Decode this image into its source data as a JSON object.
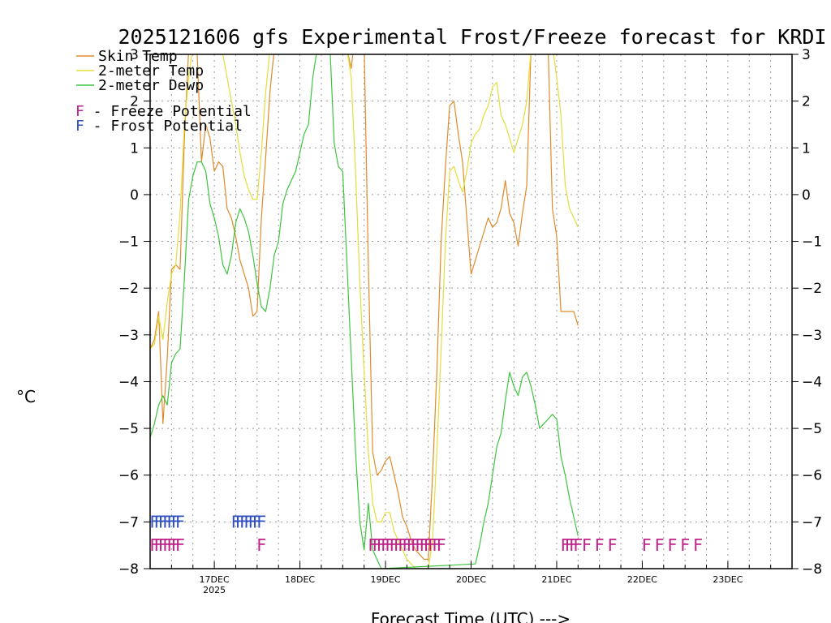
{
  "chart_data": {
    "type": "line",
    "title": "2025121606 gfs Experimental Frost/Freeze forecast for KRDI",
    "ylabel": "°C",
    "xlabel": "Forecast Time (UTC) --->",
    "ylim": [
      -8,
      3
    ],
    "xlim": [
      16.25,
      23.75
    ],
    "yticks": [
      -8,
      -7,
      -6,
      -5,
      -4,
      -3,
      -2,
      -1,
      0,
      1,
      2,
      3
    ],
    "yticks_right": [
      -8,
      -7,
      -6,
      -5,
      -4,
      -3,
      -2,
      -1,
      0,
      1,
      2,
      3
    ],
    "xticks": [
      {
        "x": 17,
        "label": "17DEC",
        "sublabel": "2025"
      },
      {
        "x": 18,
        "label": "18DEC",
        "sublabel": ""
      },
      {
        "x": 19,
        "label": "19DEC",
        "sublabel": ""
      },
      {
        "x": 20,
        "label": "20DEC",
        "sublabel": ""
      },
      {
        "x": 21,
        "label": "21DEC",
        "sublabel": ""
      },
      {
        "x": 22,
        "label": "22DEC",
        "sublabel": ""
      },
      {
        "x": 23,
        "label": "23DEC",
        "sublabel": ""
      }
    ],
    "grid": true,
    "legend_position": "top-left",
    "series": [
      {
        "name": "Skin Temp",
        "color": "#e08a2c",
        "x": [
          16.25,
          16.3,
          16.35,
          16.4,
          16.45,
          16.5,
          16.55,
          16.6,
          16.65,
          16.7,
          16.75,
          16.8,
          16.85,
          16.9,
          16.95,
          17.0,
          17.05,
          17.1,
          17.15,
          17.2,
          17.25,
          17.3,
          17.35,
          17.4,
          17.45,
          17.5,
          17.55,
          17.6,
          17.65,
          17.7,
          18.55,
          18.6,
          18.65,
          18.7,
          18.75,
          18.8,
          18.85,
          18.9,
          18.95,
          19.0,
          19.05,
          19.1,
          19.15,
          19.2,
          19.25,
          19.3,
          19.35,
          19.4,
          19.45,
          19.5,
          19.55,
          19.6,
          19.65,
          19.7,
          19.75,
          19.8,
          19.85,
          19.9,
          19.95,
          20.0,
          20.05,
          20.1,
          20.15,
          20.2,
          20.25,
          20.3,
          20.35,
          20.4,
          20.45,
          20.5,
          20.55,
          20.6,
          20.65,
          20.7,
          20.9,
          20.95,
          21.0,
          21.05,
          21.1,
          21.15,
          21.2,
          21.25
        ],
        "values": [
          -3.3,
          -3.1,
          -2.5,
          -4.9,
          -3.5,
          -1.6,
          -1.5,
          -1.6,
          1.2,
          3.1,
          3.2,
          3.0,
          0.7,
          1.5,
          1.2,
          0.5,
          0.7,
          0.6,
          -0.3,
          -0.5,
          -0.9,
          -1.4,
          -1.7,
          -2.0,
          -2.6,
          -2.5,
          -0.5,
          0.8,
          2.2,
          3.1,
          3.1,
          2.7,
          3.5,
          3.5,
          3.2,
          -1.5,
          -5.5,
          -6.0,
          -5.9,
          -5.7,
          -5.6,
          -6.0,
          -6.4,
          -6.9,
          -7.1,
          -7.4,
          -7.6,
          -7.7,
          -7.8,
          -7.8,
          -6.0,
          -3.8,
          -1.0,
          0.6,
          1.9,
          2.0,
          1.3,
          0.7,
          -0.5,
          -1.7,
          -1.4,
          -1.1,
          -0.8,
          -0.5,
          -0.7,
          -0.6,
          -0.3,
          0.3,
          -0.4,
          -0.6,
          -1.1,
          -0.4,
          0.2,
          3.1,
          3.2,
          -0.3,
          -0.9,
          -2.5,
          -2.5,
          -2.5,
          -2.5,
          -2.8
        ]
      },
      {
        "name": "2-meter Temp",
        "color": "#e3de3a",
        "x": [
          16.25,
          16.3,
          16.35,
          16.4,
          16.45,
          16.5,
          16.55,
          16.6,
          16.65,
          16.7,
          16.75,
          17.05,
          17.1,
          17.15,
          17.2,
          17.25,
          17.3,
          17.35,
          17.4,
          17.45,
          17.5,
          17.55,
          17.6,
          17.65,
          17.7,
          18.5,
          18.55,
          18.6,
          18.65,
          18.7,
          18.75,
          18.8,
          18.85,
          18.9,
          18.95,
          19.0,
          19.05,
          19.1,
          19.15,
          19.2,
          19.25,
          19.3,
          19.35,
          19.4,
          19.45,
          19.5,
          19.55,
          19.6,
          19.65,
          19.7,
          19.75,
          19.8,
          19.85,
          19.9,
          19.95,
          20.0,
          20.05,
          20.1,
          20.15,
          20.2,
          20.25,
          20.3,
          20.35,
          20.4,
          20.45,
          20.5,
          20.55,
          20.6,
          20.65,
          20.7,
          20.95,
          21.0,
          21.05,
          21.1,
          21.15,
          21.2,
          21.25
        ],
        "values": [
          -3.3,
          -3.2,
          -2.6,
          -3.1,
          -2.3,
          -1.7,
          -1.5,
          -0.4,
          1.5,
          2.5,
          3.2,
          3.2,
          3.0,
          2.5,
          2.0,
          1.5,
          0.9,
          0.4,
          0.1,
          -0.1,
          -0.1,
          0.9,
          2.2,
          3.1,
          3.2,
          3.2,
          3.1,
          2.5,
          0.5,
          -1.9,
          -3.8,
          -5.5,
          -6.6,
          -7.0,
          -7.0,
          -6.8,
          -6.8,
          -7.2,
          -7.4,
          -7.6,
          -7.8,
          -7.9,
          -8.0,
          -8.0,
          -8.0,
          -8.0,
          -7.4,
          -5.5,
          -3.3,
          -1.0,
          0.5,
          0.6,
          0.3,
          0.05,
          0.5,
          1.1,
          1.3,
          1.4,
          1.7,
          1.9,
          2.3,
          2.4,
          1.7,
          1.5,
          1.2,
          0.9,
          1.2,
          1.5,
          2.0,
          3.1,
          3.2,
          2.5,
          1.7,
          0.2,
          -0.3,
          -0.5,
          -0.7
        ]
      },
      {
        "name": "2-meter Dewp",
        "color": "#3ec43e",
        "x": [
          16.25,
          16.3,
          16.35,
          16.4,
          16.45,
          16.5,
          16.55,
          16.6,
          16.65,
          16.7,
          16.75,
          16.8,
          16.85,
          16.9,
          16.95,
          17.0,
          17.05,
          17.1,
          17.15,
          17.2,
          17.25,
          17.3,
          17.35,
          17.4,
          17.45,
          17.5,
          17.55,
          17.6,
          17.65,
          17.7,
          17.75,
          17.8,
          17.85,
          17.9,
          17.95,
          18.0,
          18.05,
          18.1,
          18.15,
          18.2,
          18.25,
          18.3,
          18.35,
          18.4,
          18.45,
          18.5,
          18.55,
          18.6,
          18.65,
          18.7,
          18.75,
          18.8,
          18.85,
          18.9,
          18.95,
          20.05,
          20.1,
          20.15,
          20.2,
          20.25,
          20.3,
          20.35,
          20.4,
          20.45,
          20.5,
          20.55,
          20.6,
          20.65,
          20.7,
          20.75,
          20.8,
          20.85,
          20.9,
          20.95,
          21.0,
          21.05,
          21.1,
          21.15,
          21.2,
          21.25
        ],
        "values": [
          -5.2,
          -4.9,
          -4.5,
          -4.3,
          -4.5,
          -3.6,
          -3.4,
          -3.3,
          -1.8,
          -0.1,
          0.4,
          0.7,
          0.7,
          0.5,
          -0.2,
          -0.5,
          -0.9,
          -1.5,
          -1.7,
          -1.3,
          -0.6,
          -0.3,
          -0.5,
          -0.8,
          -1.3,
          -1.9,
          -2.4,
          -2.5,
          -2.0,
          -1.3,
          -1.0,
          -0.2,
          0.1,
          0.3,
          0.5,
          0.9,
          1.3,
          1.5,
          2.5,
          3.1,
          3.2,
          3.2,
          3.2,
          1.1,
          0.6,
          0.5,
          -1.5,
          -3.5,
          -5.5,
          -7.0,
          -7.6,
          -6.6,
          -7.6,
          -7.8,
          -8.0,
          -7.9,
          -7.5,
          -7.0,
          -6.6,
          -6.0,
          -5.4,
          -5.1,
          -4.4,
          -3.8,
          -4.1,
          -4.3,
          -3.9,
          -3.8,
          -4.1,
          -4.5,
          -5.0,
          -4.9,
          -4.8,
          -4.7,
          -4.8,
          -5.6,
          -6.0,
          -6.5,
          -6.9,
          -7.3
        ]
      }
    ],
    "legend": [
      {
        "label": "Skin Temp",
        "color": "#e08a2c"
      },
      {
        "label": "2-meter Temp",
        "color": "#e3de3a"
      },
      {
        "label": "2-meter Dewp",
        "color": "#3ec43e"
      }
    ],
    "flag_legend": [
      {
        "letter": "F",
        "label": " - Freeze Potential",
        "color": "#c0208a"
      },
      {
        "letter": "F",
        "label": " - Frost Potential",
        "color": "#3050c0"
      }
    ],
    "frost_flags": {
      "color": "#3050c0",
      "y": -7.0,
      "x": [
        16.3,
        16.35,
        16.4,
        16.45,
        16.5,
        16.55,
        16.6,
        17.25,
        17.3,
        17.35,
        17.4,
        17.45,
        17.5,
        17.55
      ]
    },
    "freeze_flags": {
      "color": "#c0208a",
      "y": -7.5,
      "x": [
        16.3,
        16.35,
        16.4,
        16.45,
        16.5,
        16.55,
        16.6,
        17.55,
        18.85,
        18.9,
        18.95,
        19.0,
        19.05,
        19.1,
        19.15,
        19.2,
        19.25,
        19.3,
        19.35,
        19.4,
        19.45,
        19.5,
        19.55,
        19.6,
        19.65,
        21.1,
        21.15,
        21.2,
        21.25,
        21.35,
        21.5,
        21.65,
        22.05,
        22.2,
        22.35,
        22.5,
        22.65
      ]
    }
  }
}
